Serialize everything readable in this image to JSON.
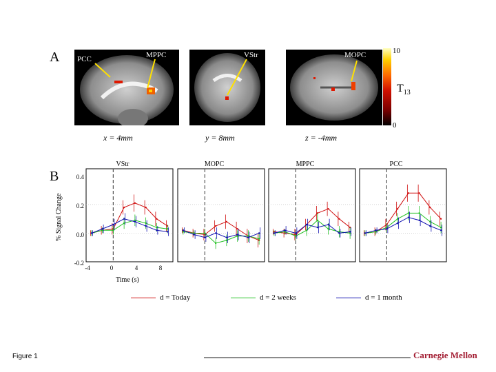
{
  "panel_a": {
    "letter": "A",
    "roi_labels": {
      "pcc": "PCC",
      "mppc": "MPPC",
      "vstr": "VStr",
      "mopc": "MOPC"
    },
    "slice_labels": [
      "x = 4mm",
      "y = 8mm",
      "z = -4mm"
    ],
    "colorbar": {
      "max": "10",
      "min": "0",
      "stat": "T",
      "stat_sub": "13",
      "colors": [
        "#000000",
        "#7a0000",
        "#d01000",
        "#ff6a00",
        "#ffd000",
        "#ffffc0"
      ]
    }
  },
  "panel_b": {
    "letter": "B",
    "ylabel": "% Signal Change",
    "xlabel": "Time (s)",
    "y_ticks": [
      "0.4",
      "0.2",
      "0.0",
      "-0.2"
    ],
    "x_ticks": [
      "-4",
      "0",
      "4",
      "8"
    ]
  },
  "legend": [
    {
      "label": "d = Today",
      "color": "#d01010"
    },
    {
      "label": "d = 2 weeks",
      "color": "#20c020"
    },
    {
      "label": "d = 1 month",
      "color": "#1010b0"
    }
  ],
  "footer": {
    "caption": "Figure 1",
    "brand": "Carnegie Mellon"
  },
  "chart_data": {
    "type": "line",
    "xlabel": "Time (s)",
    "ylabel": "% Signal Change",
    "ylim": [
      -0.2,
      0.45
    ],
    "xlim": [
      -5,
      11
    ],
    "x": [
      -4,
      -2,
      0,
      2,
      4,
      6,
      8,
      10
    ],
    "stimulus_onset": 0,
    "panels": [
      {
        "title": "VStr",
        "series": [
          {
            "name": "d = Today",
            "values": [
              0.0,
              0.02,
              0.03,
              0.18,
              0.21,
              0.18,
              0.1,
              0.05
            ],
            "errors": [
              0.02,
              0.03,
              0.04,
              0.05,
              0.06,
              0.05,
              0.05,
              0.04
            ]
          },
          {
            "name": "d = 2 weeks",
            "values": [
              0.0,
              0.02,
              0.02,
              0.07,
              0.09,
              0.07,
              0.04,
              0.03
            ],
            "errors": [
              0.02,
              0.02,
              0.03,
              0.04,
              0.04,
              0.04,
              0.03,
              0.03
            ]
          },
          {
            "name": "d = 1 month",
            "values": [
              0.0,
              0.03,
              0.06,
              0.1,
              0.08,
              0.05,
              0.02,
              0.01
            ],
            "errors": [
              0.02,
              0.03,
              0.04,
              0.04,
              0.04,
              0.04,
              0.03,
              0.03
            ]
          }
        ]
      },
      {
        "title": "MOPC",
        "series": [
          {
            "name": "d = Today",
            "values": [
              0.02,
              0.0,
              -0.01,
              0.05,
              0.08,
              0.03,
              -0.02,
              -0.05
            ],
            "errors": [
              0.02,
              0.03,
              0.04,
              0.04,
              0.05,
              0.05,
              0.05,
              0.05
            ]
          },
          {
            "name": "d = 2 weeks",
            "values": [
              0.01,
              0.0,
              0.0,
              -0.07,
              -0.05,
              -0.02,
              -0.02,
              -0.04
            ],
            "errors": [
              0.02,
              0.02,
              0.03,
              0.04,
              0.04,
              0.04,
              0.04,
              0.04
            ]
          },
          {
            "name": "d = 1 month",
            "values": [
              0.02,
              -0.01,
              -0.03,
              0.0,
              -0.03,
              -0.01,
              -0.03,
              0.0
            ],
            "errors": [
              0.02,
              0.03,
              0.03,
              0.04,
              0.04,
              0.04,
              0.04,
              0.04
            ]
          }
        ]
      },
      {
        "title": "MPPC",
        "series": [
          {
            "name": "d = Today",
            "values": [
              0.01,
              0.0,
              -0.01,
              0.06,
              0.14,
              0.17,
              0.1,
              0.04
            ],
            "errors": [
              0.02,
              0.03,
              0.04,
              0.04,
              0.05,
              0.05,
              0.05,
              0.04
            ]
          },
          {
            "name": "d = 2 weeks",
            "values": [
              0.0,
              0.01,
              -0.02,
              0.02,
              0.09,
              0.03,
              0.01,
              0.0
            ],
            "errors": [
              0.02,
              0.02,
              0.03,
              0.04,
              0.05,
              0.04,
              0.04,
              0.04
            ]
          },
          {
            "name": "d = 1 month",
            "values": [
              0.0,
              0.02,
              0.0,
              0.06,
              0.04,
              0.06,
              0.0,
              0.01
            ],
            "errors": [
              0.02,
              0.03,
              0.04,
              0.04,
              0.04,
              0.04,
              0.03,
              0.03
            ]
          }
        ]
      },
      {
        "title": "PCC",
        "series": [
          {
            "name": "d = Today",
            "values": [
              0.0,
              0.01,
              0.06,
              0.17,
              0.28,
              0.28,
              0.18,
              0.1
            ],
            "errors": [
              0.02,
              0.03,
              0.04,
              0.05,
              0.06,
              0.06,
              0.05,
              0.05
            ]
          },
          {
            "name": "d = 2 weeks",
            "values": [
              0.0,
              0.01,
              0.04,
              0.1,
              0.14,
              0.14,
              0.08,
              0.04
            ],
            "errors": [
              0.02,
              0.02,
              0.03,
              0.04,
              0.05,
              0.05,
              0.04,
              0.04
            ]
          },
          {
            "name": "d = 1 month",
            "values": [
              0.0,
              0.02,
              0.03,
              0.07,
              0.11,
              0.09,
              0.05,
              0.02
            ],
            "errors": [
              0.02,
              0.02,
              0.03,
              0.04,
              0.04,
              0.04,
              0.04,
              0.04
            ]
          }
        ]
      }
    ]
  }
}
